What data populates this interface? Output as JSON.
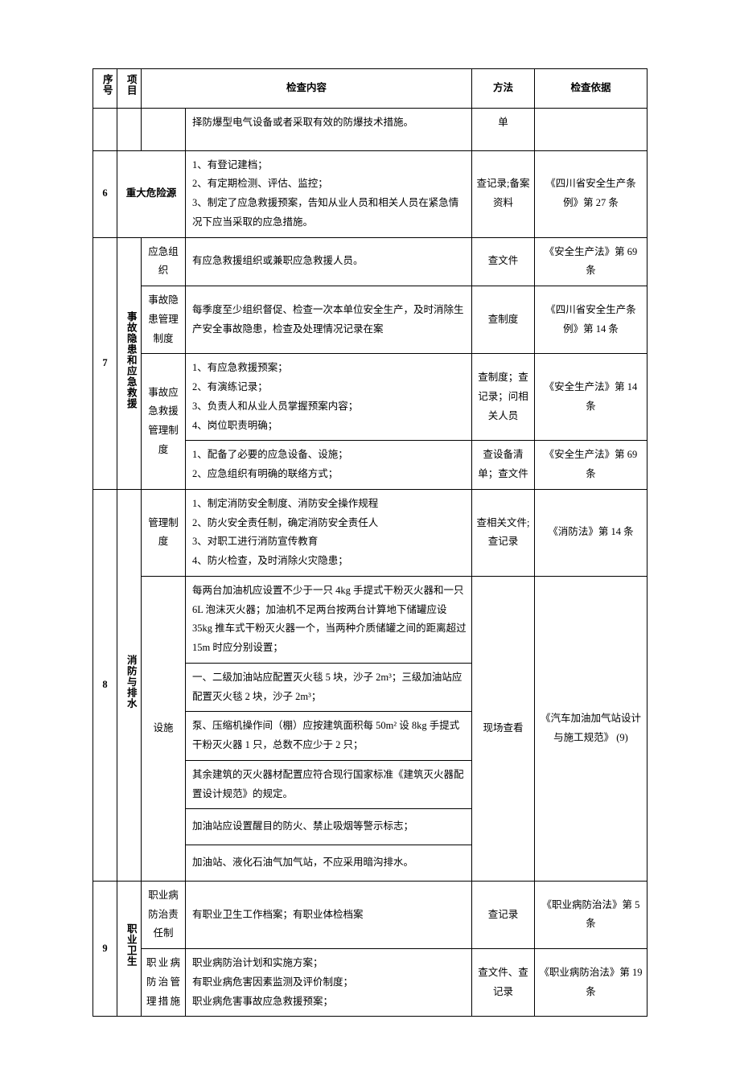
{
  "headers": {
    "seq": "序号",
    "category": "项目",
    "content": "检查内容",
    "method": "方法",
    "basis": "检查依据"
  },
  "rows": {
    "r0": {
      "content": "择防爆型电气设备或者采取有效的防爆技术措施。",
      "method": "单"
    },
    "r6": {
      "seq": "6",
      "category": "重大危险源",
      "content": "1、有登记建档；\n2、有定期检测、评估、监控；\n3、制定了应急救援预案，告知从业人员和相关人员在紧急情况下应当采取的应急措施。",
      "method": "查记录;备案资料",
      "basis": "《四川省安全生产条例》第 27 条"
    },
    "r7": {
      "seq": "7",
      "category": "事故隐患和应急救援",
      "a": {
        "sub": "应急组织",
        "content": "有应急救援组织或兼职应急救援人员。",
        "method": "查文件",
        "basis": "《安全生产法》第 69 条"
      },
      "b": {
        "sub": "事故隐患管理制度",
        "content": "每季度至少组织督促、检查一次本单位安全生产，及时消除生产安全事故隐患，检查及处理情况记录在案",
        "method": "查制度",
        "basis": "《四川省安全生产条例》第 14 条"
      },
      "c": {
        "sub": "事故应急救援管理制度",
        "content": "1、有应急救援预案；\n2、有演练记录；\n3、负责人和从业人员掌握预案内容；\n4、岗位职责明确；",
        "method": "查制度；查记录；问相关人员",
        "basis": "《安全生产法》第 14 条"
      },
      "d": {
        "content": "1、配备了必要的应急设备、设施；\n2、应急组织有明确的联络方式；",
        "method": "查设备清单；查文件",
        "basis": "《安全生产法》第 69 条"
      }
    },
    "r8": {
      "seq": "8",
      "category": "消防与排水",
      "a": {
        "sub": "管理制度",
        "content": "1、制定消防安全制度、消防安全操作规程\n2、防火安全责任制，确定消防安全责任人\n3、对职工进行消防宣传教育\n4、防火检查，及时消除火灾隐患；",
        "method": "查相关文件;查记录",
        "basis": "《消防法》第 14 条"
      },
      "b": {
        "sub": "设施",
        "c1": "每两台加油机应设置不少于一只 4kg 手提式干粉灭火器和一只 6L 泡沫灭火器；加油机不足两台按两台计算地下储罐应设 35kg 推车式干粉灭火器一个，当两种介质储罐之间的距离超过 15m 时应分别设置；",
        "c2": "一、二级加油站应配置灭火毯 5 块，沙子 2m³；三级加油站应配置灭火毯 2 块，沙子 2m³；",
        "c3": "泵、压缩机操作间（棚）应按建筑面积每 50m² 设 8kg 手提式干粉灭火器 1 只，总数不应少于 2 只；",
        "c4": "其余建筑的灭火器材配置应符合现行国家标准《建筑灭火器配置设计规范》的规定。",
        "c5": "加油站应设置醒目的防火、禁止吸烟等警示标志；",
        "c6": "加油站、液化石油气加气站，不应采用暗沟排水。",
        "method": "现场查看",
        "basis": "《汽车加油加气站设计与施工规范》 (9)"
      }
    },
    "r9": {
      "seq": "9",
      "category": "职业卫生",
      "a": {
        "sub": "职业病防治责任制",
        "content": "有职业卫生工作档案；有职业体检档案",
        "method": "查记录",
        "basis": "《职业病防治法》第 5 条"
      },
      "b": {
        "sub": "职业病防治管理措施",
        "content": "职业病防治计划和实施方案；\n有职业病危害因素监测及评价制度；\n职业病危害事故应急救援预案；",
        "method": "查文件、查记录",
        "basis": "《职业病防治法》第 19 条"
      }
    }
  }
}
